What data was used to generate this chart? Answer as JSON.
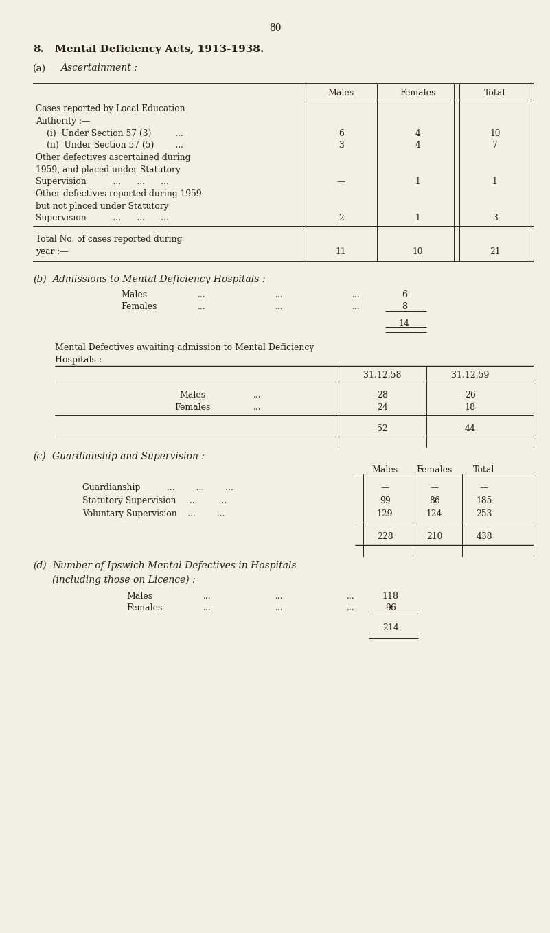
{
  "bg_color": "#f2f0e6",
  "text_color": "#2a2018",
  "page_number": "80",
  "main_title_1": "8.",
  "main_title_2": "Mental Deficiency Acts, 1913-1938.",
  "section_a_label": "(a)",
  "section_a_text": "Ascertainment :",
  "section_b_label": "(b)",
  "section_b_text": "Admissions to Mental Deficiency Hospitals :",
  "section_c_label": "(c)",
  "section_c_text": "Guardianship and Supervision :",
  "section_d_label": "(d)",
  "section_d_text1": "Number of Ipswich Mental Defectives in Hospitals",
  "section_d_text2": "(including those on Licence) :"
}
